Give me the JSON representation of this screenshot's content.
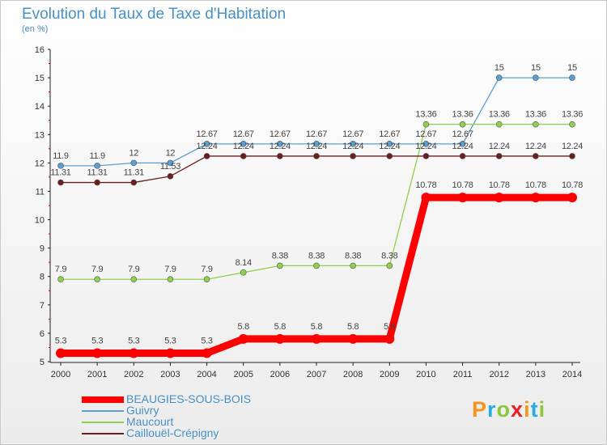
{
  "chart_data": {
    "type": "line",
    "title": "Evolution du Taux de Taxe d'Habitation",
    "subtitle": "(en %)",
    "x": [
      "2000",
      "2001",
      "2002",
      "2003",
      "2004",
      "2005",
      "2006",
      "2007",
      "2008",
      "2009",
      "2010",
      "2011",
      "2012",
      "2013",
      "2014"
    ],
    "ylim": [
      5,
      16
    ],
    "yticks": [
      "5",
      "6",
      "7",
      "8",
      "9",
      "10",
      "11",
      "12",
      "13",
      "14",
      "15",
      "16"
    ],
    "grid": false,
    "legend_position": "bottom-left",
    "series": [
      {
        "name": "BEAUGIES-SOUS-BOIS",
        "color": "#ff0000",
        "values": [
          5.3,
          5.3,
          5.3,
          5.3,
          5.3,
          5.8,
          5.8,
          5.8,
          5.8,
          5.8,
          10.78,
          10.78,
          10.78,
          10.78,
          10.78
        ],
        "labels": [
          "5.3",
          "5.3",
          "5.3",
          "5.3",
          "5.3",
          "5.8",
          "5.8",
          "5.8",
          "5.8",
          "5.8",
          "10.78",
          "10.78",
          "10.78",
          "10.78",
          "10.78"
        ]
      },
      {
        "name": "Guivry",
        "color": "#5a9fd4",
        "values": [
          11.9,
          11.9,
          12,
          12,
          12.67,
          12.67,
          12.67,
          12.67,
          12.67,
          12.67,
          12.67,
          12.67,
          15,
          15,
          15
        ],
        "labels": [
          "11.9",
          "11.9",
          "12",
          "12",
          "12.67",
          "12.67",
          "12.67",
          "12.67",
          "12.67",
          "12.67",
          "12.67",
          "12.67",
          "15",
          "15",
          "15"
        ]
      },
      {
        "name": "Maucourt",
        "color": "#8fd14f",
        "values": [
          7.9,
          7.9,
          7.9,
          7.9,
          7.9,
          8.14,
          8.38,
          8.38,
          8.38,
          8.38,
          13.36,
          13.36,
          13.36,
          13.36,
          13.36
        ],
        "labels": [
          "7.9",
          "7.9",
          "7.9",
          "7.9",
          "7.9",
          "8.14",
          "8.38",
          "8.38",
          "8.38",
          "8.38",
          "13.36",
          "13.36",
          "13.36",
          "13.36",
          "13.36"
        ]
      },
      {
        "name": "Caillouël-Crépigny",
        "color": "#6b1e1e",
        "values": [
          11.31,
          11.31,
          11.31,
          11.53,
          12.24,
          12.24,
          12.24,
          12.24,
          12.24,
          12.24,
          12.24,
          12.24,
          12.24,
          12.24,
          12.24
        ],
        "labels": [
          "11.31",
          "11.31",
          "11.31",
          "11.53",
          "12.24",
          "12.24",
          "12.24",
          "12.24",
          "12.24",
          "12.24",
          "12.24",
          "12.24",
          "12.24",
          "12.24",
          "12.24"
        ]
      }
    ]
  },
  "logo": {
    "letters": [
      "P",
      "r",
      "o",
      "x",
      "i",
      "t",
      "i"
    ],
    "colors": [
      "#f7941d",
      "#29abe2",
      "#8dc63f",
      "#ed1c24",
      "#f7941d",
      "#29abe2",
      "#8dc63f"
    ]
  }
}
